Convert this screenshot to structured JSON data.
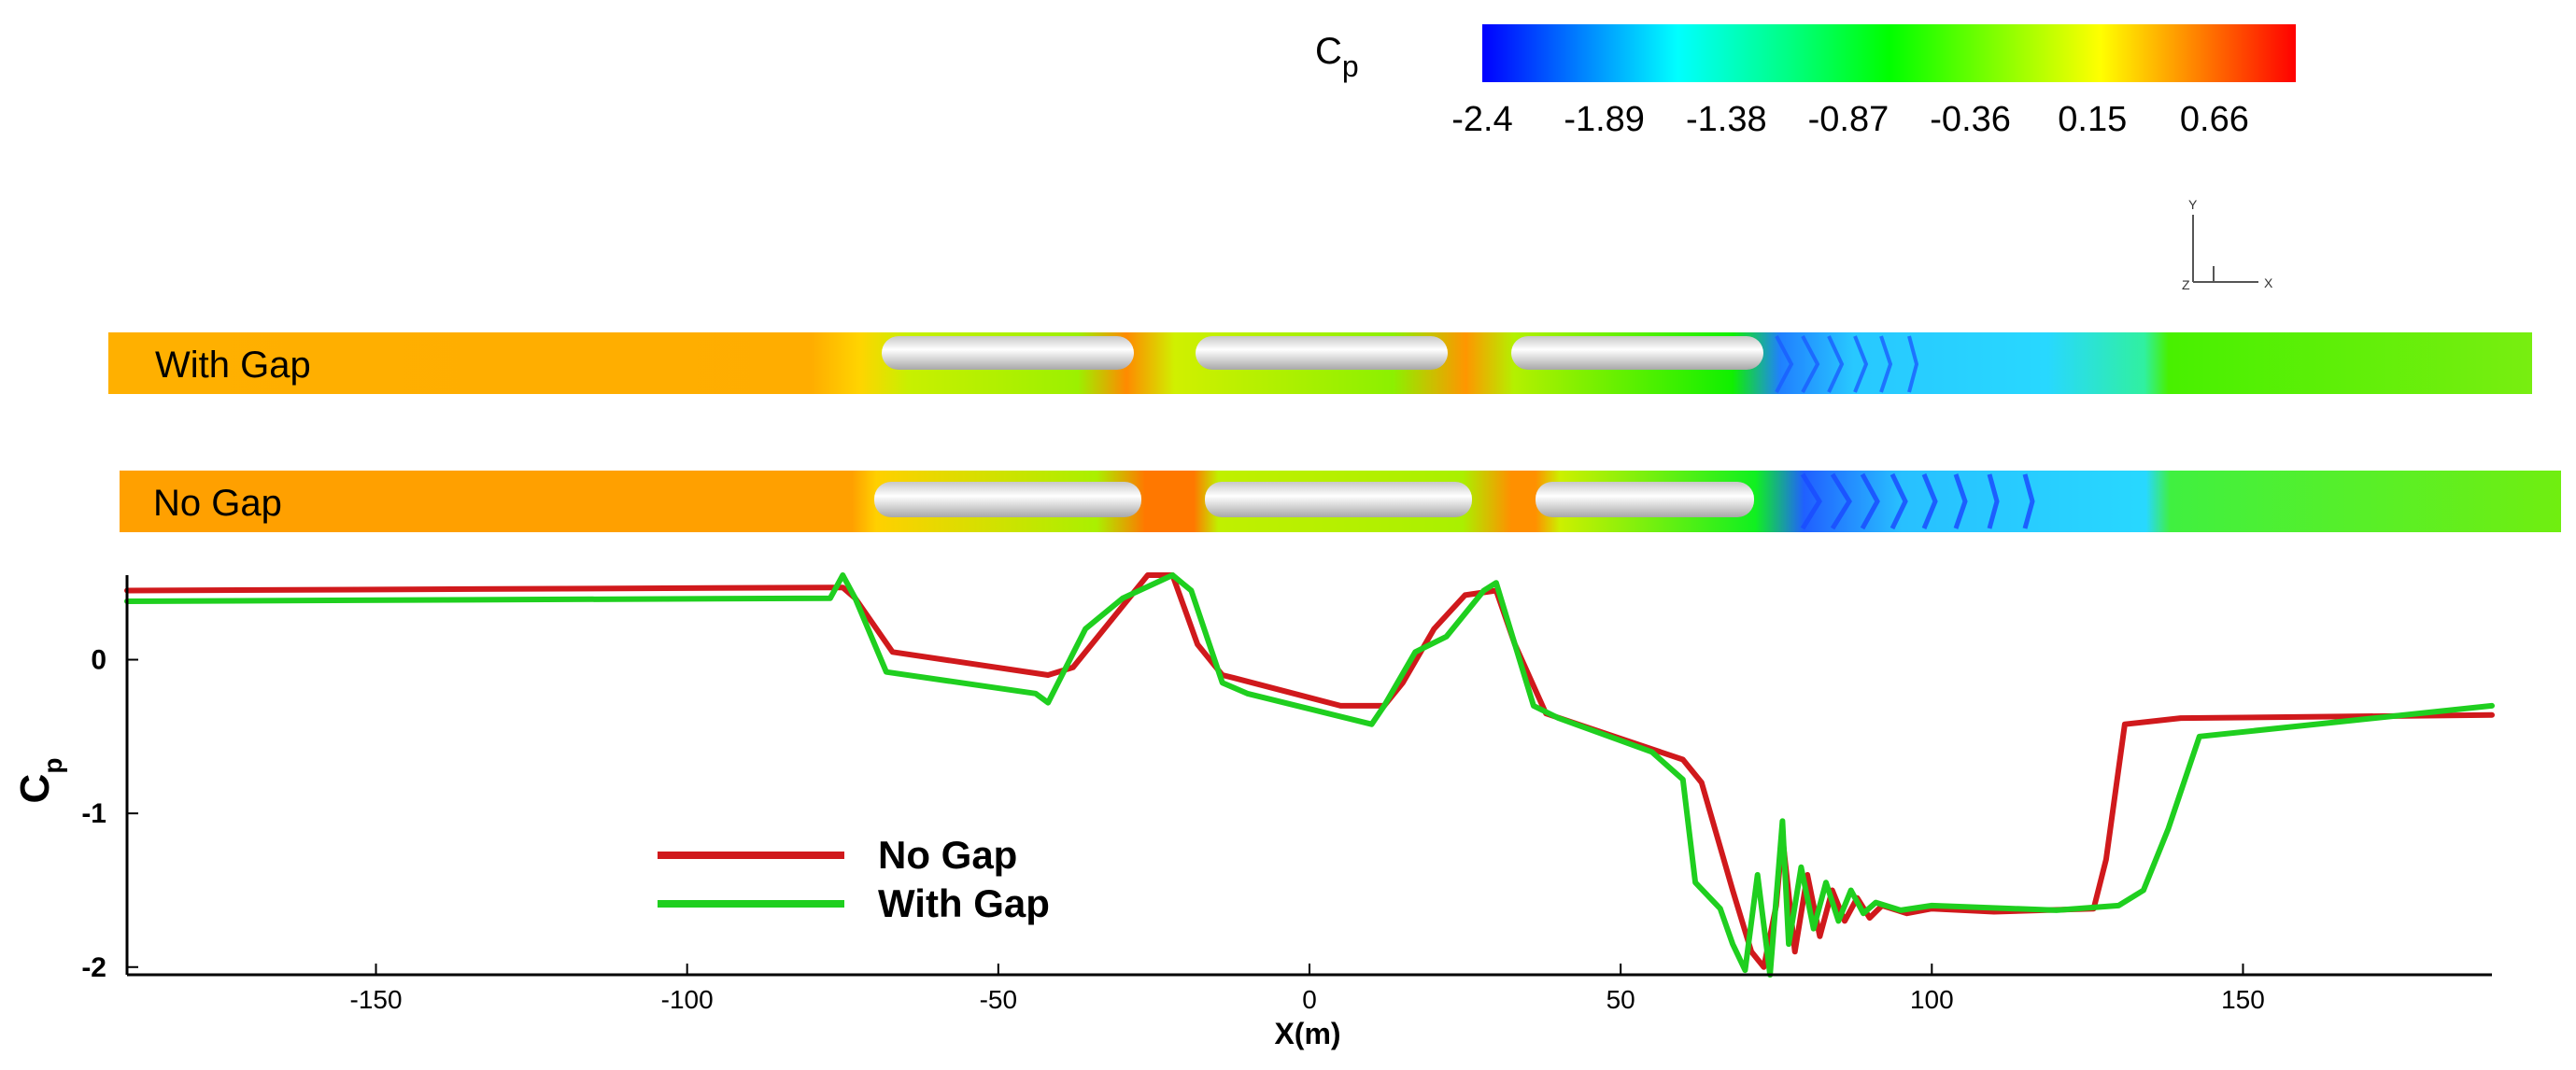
{
  "colorbar": {
    "label_main": "C",
    "label_sub": "p",
    "range": [
      -2.4,
      1.0
    ],
    "ticks": [
      "-2.4",
      "-1.89",
      "-1.38",
      "-0.87",
      "-0.36",
      "0.15",
      "0.66"
    ],
    "tick_values": [
      -2.4,
      -1.89,
      -1.38,
      -0.87,
      -0.36,
      0.15,
      0.66
    ],
    "colors": [
      "#0000ff",
      "#0080ff",
      "#00ffff",
      "#00ff80",
      "#00ff00",
      "#80ff00",
      "#ffff00",
      "#ff8000",
      "#ff0000"
    ]
  },
  "triad": {
    "y": "Y",
    "x": "X",
    "z": "Z"
  },
  "panels": [
    {
      "label": "With Gap"
    },
    {
      "label": "No Gap"
    }
  ],
  "chart_data": {
    "type": "line",
    "title": "",
    "xlabel": "X(m)",
    "ylabel_main": "C",
    "ylabel_sub": "p",
    "xlim": [
      -190,
      190
    ],
    "ylim": [
      -2.05,
      0.55
    ],
    "xticks": [
      -150,
      -100,
      -50,
      0,
      50,
      100,
      150
    ],
    "xtick_labels": [
      "-150",
      "-100",
      "-50",
      "0",
      "50",
      "100",
      "150"
    ],
    "yticks": [
      0,
      -1,
      -2
    ],
    "ytick_labels": [
      "0",
      "-1",
      "-2"
    ],
    "legend_position": "lower-left",
    "series": [
      {
        "name": "No Gap",
        "color": "#d0191c",
        "x": [
          -190,
          -75,
          -73,
          -67,
          -42,
          -38,
          -26,
          -22,
          -18,
          -14,
          -12,
          5,
          12,
          15,
          20,
          25,
          30,
          33,
          38,
          60,
          63,
          68,
          71,
          73,
          75,
          76,
          78,
          80,
          82,
          84,
          86,
          88,
          90,
          92,
          96,
          100,
          110,
          126,
          128,
          131,
          140,
          190
        ],
        "y": [
          0.45,
          0.47,
          0.4,
          0.05,
          -0.1,
          -0.05,
          0.55,
          0.55,
          0.1,
          -0.1,
          -0.12,
          -0.3,
          -0.3,
          -0.15,
          0.2,
          0.42,
          0.45,
          0.1,
          -0.35,
          -0.65,
          -0.8,
          -1.5,
          -1.9,
          -2.0,
          -1.6,
          -1.15,
          -1.9,
          -1.4,
          -1.8,
          -1.5,
          -1.7,
          -1.55,
          -1.68,
          -1.6,
          -1.65,
          -1.62,
          -1.64,
          -1.62,
          -1.3,
          -0.42,
          -0.38,
          -0.36
        ]
      },
      {
        "name": "With Gap",
        "color": "#1fcf1f",
        "x": [
          -190,
          -77,
          -75,
          -73,
          -68,
          -44,
          -42,
          -36,
          -30,
          -22,
          -19,
          -14,
          -10,
          10,
          12,
          17,
          22,
          25,
          28,
          30,
          33,
          36,
          40,
          55,
          60,
          62,
          66,
          68,
          70,
          72,
          74,
          76,
          77,
          79,
          81,
          83,
          85,
          87,
          89,
          91,
          95,
          100,
          120,
          130,
          134,
          138,
          143,
          190
        ],
        "y": [
          0.38,
          0.4,
          0.55,
          0.4,
          -0.08,
          -0.22,
          -0.28,
          0.2,
          0.4,
          0.55,
          0.45,
          -0.15,
          -0.22,
          -0.42,
          -0.3,
          0.05,
          0.15,
          0.3,
          0.45,
          0.5,
          0.1,
          -0.3,
          -0.38,
          -0.6,
          -0.78,
          -1.45,
          -1.62,
          -1.85,
          -2.02,
          -1.4,
          -2.05,
          -1.05,
          -1.85,
          -1.35,
          -1.75,
          -1.45,
          -1.7,
          -1.5,
          -1.65,
          -1.58,
          -1.63,
          -1.6,
          -1.63,
          -1.6,
          -1.5,
          -1.1,
          -0.5,
          -0.3
        ]
      }
    ]
  }
}
